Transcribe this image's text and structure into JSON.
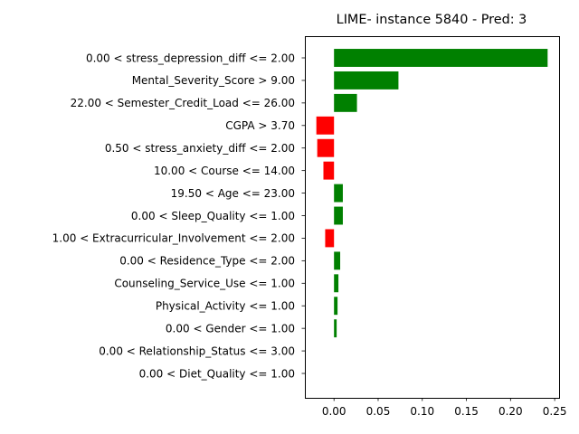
{
  "chart_data": {
    "type": "bar",
    "orientation": "horizontal",
    "title": "LIME- instance 5840 - Pred: 3",
    "xlabel": "",
    "ylabel": "",
    "xlim": [
      -0.033,
      0.255
    ],
    "xticks": [
      "0.00",
      "0.05",
      "0.10",
      "0.15",
      "0.20",
      "0.25"
    ],
    "xtick_values": [
      0.0,
      0.05,
      0.1,
      0.15,
      0.2,
      0.25
    ],
    "grid": false,
    "colors": {
      "positive": "#008000",
      "negative": "#ff0000"
    },
    "categories": [
      "0.00 < stress_depression_diff <= 2.00",
      "Mental_Severity_Score > 9.00",
      "22.00 < Semester_Credit_Load <= 26.00",
      "CGPA > 3.70",
      "0.50 < stress_anxiety_diff <= 2.00",
      "10.00 < Course <= 14.00",
      "19.50 < Age <= 23.00",
      "0.00 < Sleep_Quality <= 1.00",
      "1.00 < Extracurricular_Involvement <= 2.00",
      "0.00 < Residence_Type <= 2.00",
      "Counseling_Service_Use <= 1.00",
      "Physical_Activity <= 1.00",
      "0.00 < Gender <= 1.00",
      "0.00 < Relationship_Status <= 3.00",
      "0.00 < Diet_Quality <= 1.00"
    ],
    "values": [
      0.242,
      0.073,
      0.026,
      -0.02,
      -0.019,
      -0.012,
      0.01,
      0.01,
      -0.01,
      0.007,
      0.005,
      0.004,
      0.003,
      0.0,
      0.0
    ]
  }
}
